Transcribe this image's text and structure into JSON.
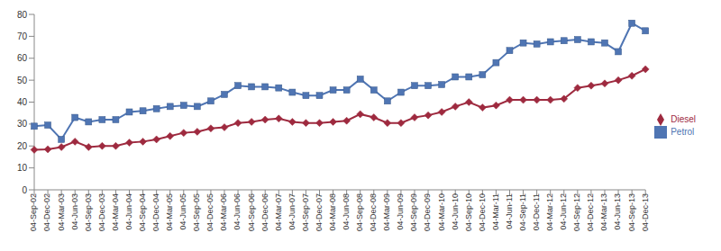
{
  "chart_data": {
    "type": "line",
    "categories": [
      "04-Sep-02",
      "04-Dec-02",
      "04-Mar-03",
      "04-Jun-03",
      "04-Sep-03",
      "04-Dec-03",
      "04-Mar-04",
      "04-Jun-04",
      "04-Sep-04",
      "04-Dec-04",
      "04-Mar-05",
      "04-Jun-05",
      "04-Sep-05",
      "04-Dec-05",
      "04-Mar-06",
      "04-Jun-06",
      "04-Sep-06",
      "04-Dec-06",
      "04-Mar-07",
      "04-Jun-07",
      "04-Sep-07",
      "04-Dec-07",
      "04-Mar-08",
      "04-Jun-08",
      "04-Sep-08",
      "04-Dec-08",
      "04-Mar-09",
      "04-Jun-09",
      "04-Sep-09",
      "04-Dec-09",
      "04-Mar-10",
      "04-Jun-10",
      "04-Sep-10",
      "04-Dec-10",
      "04-Mar-11",
      "04-Jun-11",
      "04-Sep-11",
      "04-Dec-11",
      "04-Mar-12",
      "04-Jun-12",
      "04-Sep-12",
      "04-Dec-12",
      "04-Mar-13",
      "04-Jun-13",
      "04-Sep-13",
      "04-Dec-13"
    ],
    "series": [
      {
        "name": "Diesel",
        "color": "#9e2a3f",
        "marker": "diamond",
        "values": [
          18.3,
          18.5,
          19.5,
          22.0,
          19.5,
          20.0,
          20.0,
          21.5,
          22.0,
          23.0,
          24.5,
          26.0,
          26.5,
          28.0,
          28.5,
          30.5,
          31.0,
          32.0,
          32.5,
          31.0,
          30.5,
          30.5,
          31.0,
          31.5,
          34.5,
          33.0,
          30.5,
          30.5,
          33.0,
          34.0,
          35.5,
          38.0,
          40.0,
          37.5,
          38.5,
          41.0,
          41.0,
          41.0,
          41.0,
          41.5,
          46.5,
          47.5,
          48.5,
          50.0,
          52.0,
          55.0
        ]
      },
      {
        "name": "Petrol",
        "color": "#4f75b3",
        "marker": "square",
        "values": [
          29.0,
          29.5,
          23.0,
          33.0,
          31.0,
          32.0,
          32.0,
          35.5,
          36.0,
          37.0,
          38.0,
          38.5,
          38.0,
          40.5,
          43.5,
          47.5,
          47.0,
          47.0,
          46.5,
          44.5,
          43.0,
          43.0,
          45.5,
          45.5,
          50.5,
          45.5,
          40.5,
          44.5,
          47.5,
          47.5,
          48.0,
          51.5,
          51.5,
          52.5,
          58.0,
          63.5,
          67.0,
          66.5,
          67.5,
          68.0,
          68.5,
          67.5,
          67.0,
          63.0,
          76.0,
          72.5
        ]
      }
    ],
    "ylim": [
      0,
      80
    ],
    "yticks": [
      0,
      10,
      20,
      30,
      40,
      50,
      60,
      70,
      80
    ],
    "grid": false,
    "legend": "right"
  }
}
